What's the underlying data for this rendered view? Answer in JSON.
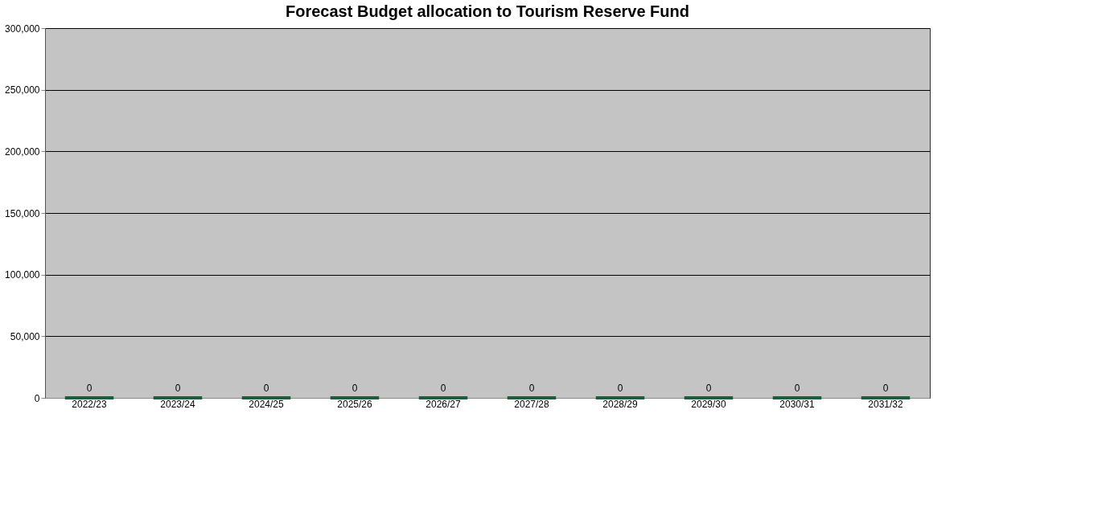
{
  "chart_data": {
    "type": "bar",
    "title": "Forecast Budget allocation to Tourism Reserve Fund",
    "categories": [
      "2022/23",
      "2023/24",
      "2024/25",
      "2025/26",
      "2026/27",
      "2027/28",
      "2028/29",
      "2029/30",
      "2030/31",
      "2031/32"
    ],
    "values": [
      0,
      0,
      0,
      0,
      0,
      0,
      0,
      0,
      0,
      0
    ],
    "color": "#1f5e3a",
    "ylim": [
      0,
      300000
    ],
    "yticks": [
      0,
      {
        "value": 50000,
        "label": "50,000"
      },
      {
        "value": 100000,
        "label": "100,000"
      },
      {
        "value": 150000,
        "label": "150,000"
      },
      {
        "value": 200000,
        "label": "200,000"
      },
      {
        "value": 250000,
        "label": "250,000"
      },
      {
        "value": 300000,
        "label": "300,000"
      }
    ],
    "grid": "y",
    "data_labels": true
  }
}
